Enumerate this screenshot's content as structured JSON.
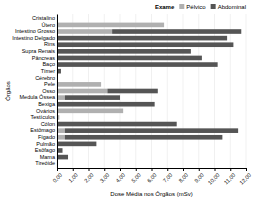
{
  "chart_data": {
    "type": "bar",
    "orientation": "horizontal",
    "stacked": true,
    "title": "Exame",
    "xlabel": "Dose Média nos Órgãos (mSv)",
    "ylabel": "Órgãos",
    "categories": [
      "Cristalino",
      "Útero",
      "Intestino Grosso",
      "Intestino Delgado",
      "Rins",
      "Supra Renais",
      "Pâncreas",
      "Baço",
      "Tímer",
      "Cérebro",
      "Pele",
      "Osso",
      "Medula Óssea",
      "Bexiga",
      "Ovários",
      "Testículos",
      "Cólon",
      "Estômago",
      "Fígado",
      "Pulmão",
      "Esôfago",
      "Mama",
      "Tireóide"
    ],
    "series": [
      {
        "name": "Pélvico",
        "color": "#b0b0b0",
        "values": [
          0,
          6800,
          3500,
          0,
          0,
          0,
          0,
          0,
          0,
          0,
          2800,
          3200,
          500,
          0,
          4200,
          150,
          0,
          500,
          500,
          0,
          0,
          0,
          0
        ]
      },
      {
        "name": "Abdominal",
        "color": "#555555",
        "values": [
          0,
          0,
          8200,
          10800,
          11200,
          8500,
          9200,
          10200,
          250,
          0,
          0,
          3200,
          3500,
          6200,
          0,
          0,
          7600,
          11000,
          10000,
          2500,
          350,
          700,
          0
        ]
      }
    ],
    "xlim": [
      0,
      12000
    ],
    "xticks": [
      {
        "value": 0,
        "label": "0,00"
      },
      {
        "value": 1000,
        "label": "1,00"
      },
      {
        "value": 2000,
        "label": "2,00"
      },
      {
        "value": 3000,
        "label": "3,00"
      },
      {
        "value": 4000,
        "label": "4,00"
      },
      {
        "value": 5000,
        "label": "5,00"
      },
      {
        "value": 6000,
        "label": "6,00"
      },
      {
        "value": 7000,
        "label": "7,00"
      },
      {
        "value": 8000,
        "label": "8,00"
      },
      {
        "value": 9000,
        "label": "9,00"
      },
      {
        "value": 10000,
        "label": "10,00"
      },
      {
        "value": 11000,
        "label": "11,00"
      },
      {
        "value": 12000,
        "label": "12,00"
      }
    ],
    "grid": true,
    "legend": "upper right"
  }
}
